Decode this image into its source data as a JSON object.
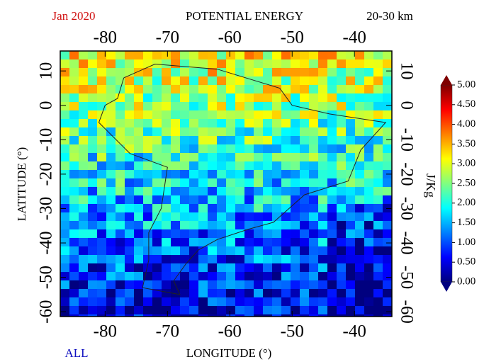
{
  "header": {
    "date": "Jan 2020",
    "title": "POTENTIAL ENERGY",
    "altitude": "20-30 km",
    "dataset": "ALL"
  },
  "map": {
    "xlabel": "LONGITUDE (°)",
    "ylabel": "LATITUDE (°)",
    "xlim": [
      -87.2,
      -34
    ],
    "ylim": [
      -61.4,
      15.8
    ],
    "xticks": [
      -80,
      -70,
      -60,
      -50,
      -40
    ],
    "yticks": [
      10,
      0,
      -10,
      -20,
      -30,
      -40,
      -50,
      -60
    ]
  },
  "colorbar": {
    "label": "J/Kg",
    "lim": [
      0,
      5
    ],
    "ticks": [
      {
        "value": 0,
        "label": "0.00"
      },
      {
        "value": 0.5,
        "label": "0.50"
      },
      {
        "value": 1,
        "label": "1.00"
      },
      {
        "value": 1.5,
        "label": "1.50"
      },
      {
        "value": 2,
        "label": "2.00"
      },
      {
        "value": 2.5,
        "label": "2.50"
      },
      {
        "value": 3,
        "label": "3.00"
      },
      {
        "value": 3.5,
        "label": "3.50"
      },
      {
        "value": 4,
        "label": "4.00"
      },
      {
        "value": 4.5,
        "label": "4.50"
      },
      {
        "value": 5,
        "label": "5.00"
      }
    ],
    "colors": [
      "#00007f",
      "#0000ff",
      "#0080ff",
      "#00ffff",
      "#80ff80",
      "#ffff00",
      "#ff8000",
      "#ff0000",
      "#7f0000"
    ]
  }
}
